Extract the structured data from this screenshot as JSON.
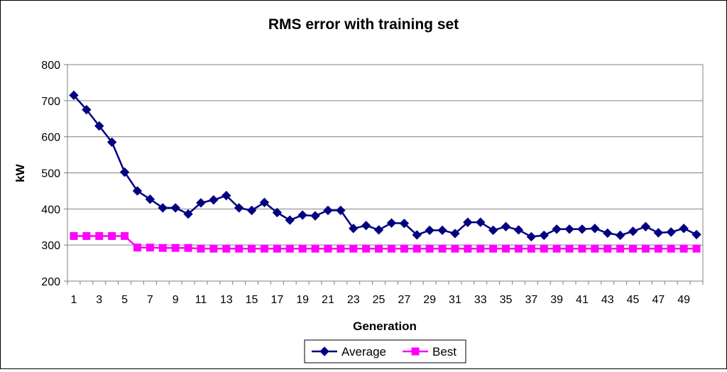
{
  "chart_data": {
    "type": "line",
    "title": "RMS error with training set",
    "xlabel": "Generation",
    "ylabel": "kW",
    "ylim": [
      200,
      800
    ],
    "yticks": [
      200,
      300,
      400,
      500,
      600,
      700,
      800
    ],
    "xtick_labels": [
      "1",
      "3",
      "5",
      "7",
      "9",
      "11",
      "13",
      "15",
      "17",
      "19",
      "21",
      "23",
      "25",
      "27",
      "29",
      "31",
      "33",
      "35",
      "37",
      "39",
      "41",
      "43",
      "45",
      "47",
      "49"
    ],
    "grid": true,
    "legend": "bottom",
    "x": [
      1,
      2,
      3,
      4,
      5,
      6,
      7,
      8,
      9,
      10,
      11,
      12,
      13,
      14,
      15,
      16,
      17,
      18,
      19,
      20,
      21,
      22,
      23,
      24,
      25,
      26,
      27,
      28,
      29,
      30,
      31,
      32,
      33,
      34,
      35,
      36,
      37,
      38,
      39,
      40,
      41,
      42,
      43,
      44,
      45,
      46,
      47,
      48,
      49,
      50
    ],
    "series": [
      {
        "name": "Average",
        "color": "#000080",
        "marker": "diamond",
        "values": [
          715,
          675,
          630,
          585,
          502,
          450,
          427,
          403,
          403,
          386,
          417,
          425,
          437,
          403,
          396,
          418,
          390,
          369,
          383,
          381,
          396,
          396,
          346,
          354,
          342,
          361,
          360,
          328,
          341,
          341,
          332,
          363,
          363,
          341,
          351,
          342,
          323,
          327,
          344,
          344,
          344,
          346,
          333,
          327,
          338,
          351,
          334,
          336,
          346,
          329
        ]
      },
      {
        "name": "Best",
        "color": "#ff00ff",
        "marker": "square",
        "values": [
          325,
          325,
          325,
          325,
          325,
          293,
          293,
          292,
          292,
          292,
          290,
          290,
          290,
          290,
          290,
          290,
          290,
          290,
          290,
          290,
          290,
          290,
          290,
          290,
          290,
          290,
          290,
          290,
          290,
          290,
          290,
          290,
          290,
          290,
          290,
          290,
          290,
          290,
          290,
          290,
          290,
          290,
          290,
          290,
          290,
          290,
          290,
          290,
          290,
          290
        ]
      }
    ]
  }
}
